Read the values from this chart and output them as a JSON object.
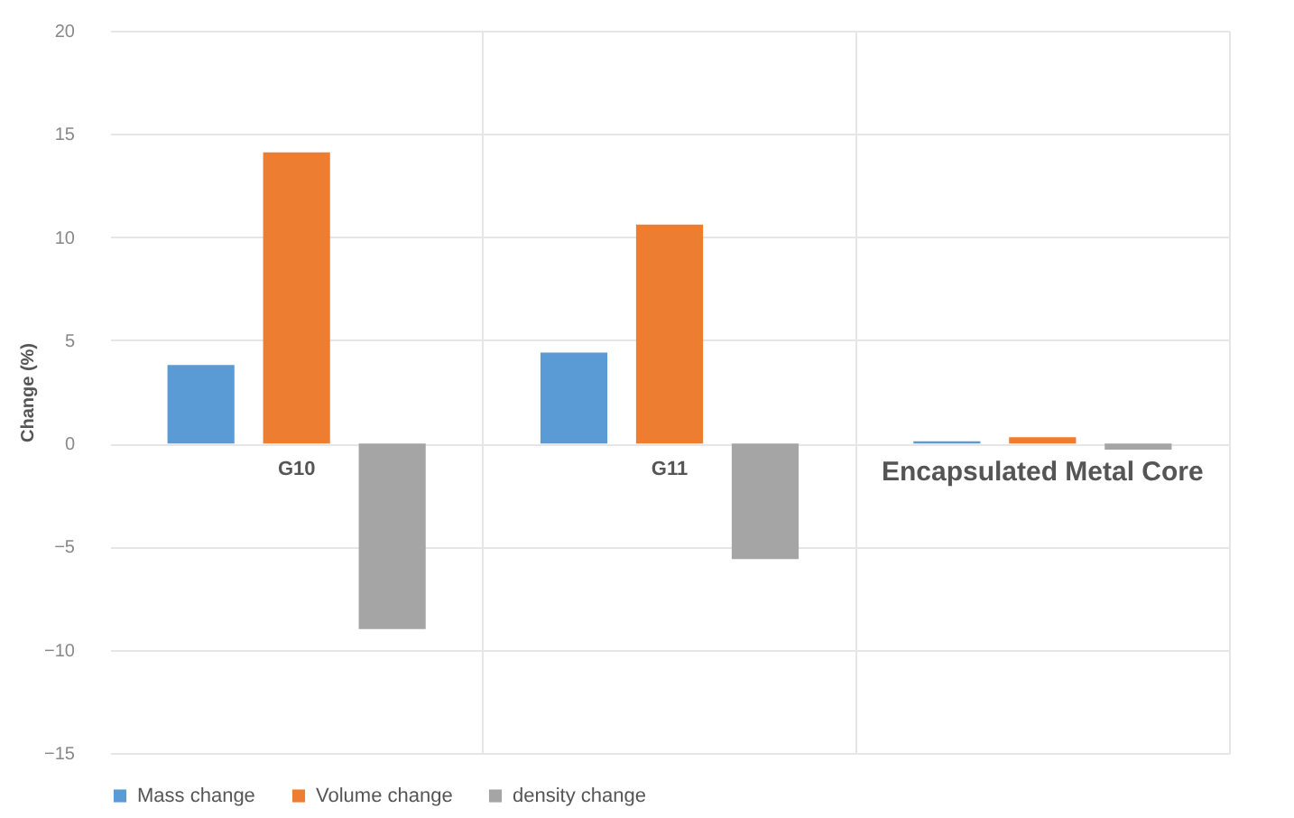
{
  "chart_data": {
    "type": "bar",
    "ylabel": "Change (%)",
    "categories": [
      "G10",
      "G11",
      "Encapsulated Metal Core"
    ],
    "series": [
      {
        "name": "Mass change",
        "color": "#5b9bd5",
        "values": [
          3.8,
          4.4,
          0.1
        ]
      },
      {
        "name": "Volume change",
        "color": "#ed7d31",
        "values": [
          14.1,
          10.6,
          0.3
        ]
      },
      {
        "name": "density change",
        "color": "#a5a5a5",
        "values": [
          -9.0,
          -5.6,
          -0.3
        ]
      }
    ],
    "ylim": [
      -15,
      20
    ],
    "yticks": [
      -15,
      -10,
      -5,
      0,
      5,
      10,
      15,
      20
    ],
    "grid": true,
    "legend": "bottom"
  }
}
